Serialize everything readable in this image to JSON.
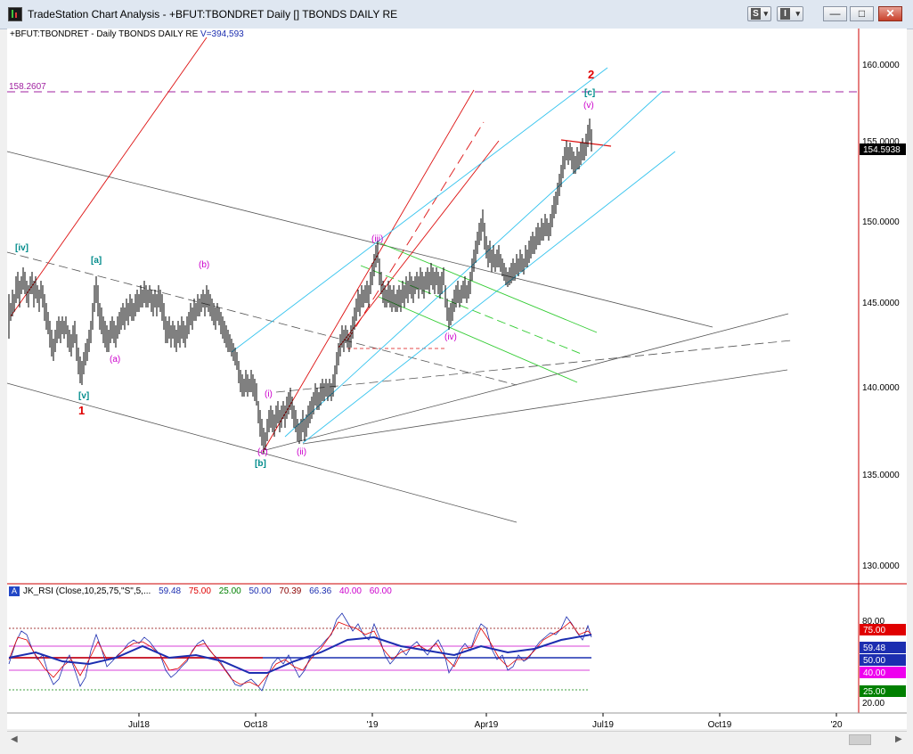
{
  "window": {
    "title": "TradeStation Chart Analysis - +BFUT:TBONDRET Daily [] TBONDS DAILY RE",
    "btn_s": "S",
    "btn_i": "I",
    "minimize": "—",
    "maximize": "□",
    "close": "✕"
  },
  "chart": {
    "symbol_label": "+BFUT:TBONDRET - Daily  TBONDS DAILY RE",
    "volume_label": "V=394,593",
    "ref_level_label": "158.2607",
    "last_price": "154.5938",
    "price_ticks": [
      "160.0000",
      "155.0000",
      "150.0000",
      "145.0000",
      "140.0000",
      "135.0000",
      "130.0000"
    ],
    "date_ticks": [
      "Jul18",
      "Oct18",
      "'19",
      "Apr19",
      "Jul19",
      "Oct19",
      "'20"
    ],
    "wave_labels": {
      "iv_bracket": "[iv]",
      "a_bracket": "[a]",
      "v_bracket": "[v]",
      "wave_1": "1",
      "b_paren_top": "(b)",
      "a_paren": "(a)",
      "c_paren": "(c)",
      "b_bracket": "[b]",
      "i_paren": "(i)",
      "ii_paren": "(ii)",
      "iii_paren": "(iii)",
      "iv_paren": "(iv)",
      "v_paren": "(v)",
      "c_bracket": "[c]",
      "wave_2": "2"
    },
    "colors": {
      "red": "#e00000",
      "cyan": "#33c3ee",
      "green": "#33cc33",
      "magenta": "#cc00cc",
      "teal": "#008b8b",
      "gray": "#555555"
    }
  },
  "indicator": {
    "badge": "A",
    "name": "JK_RSI (Close,10,25,75,\"S\",5,...",
    "values": [
      {
        "text": "59.48",
        "color": "#1c2eb0"
      },
      {
        "text": "75.00",
        "color": "#e00000"
      },
      {
        "text": "25.00",
        "color": "#008000"
      },
      {
        "text": "50.00",
        "color": "#1c2eb0"
      },
      {
        "text": "70.39",
        "color": "#8b0000"
      },
      {
        "text": "66.36",
        "color": "#1c2eb0"
      },
      {
        "text": "40.00",
        "color": "#cc00cc"
      },
      {
        "text": "60.00",
        "color": "#cc00cc"
      }
    ],
    "axis_labels": {
      "r80": "80.00",
      "r75": "75.00",
      "r5948": "59.48",
      "r50": "50.00",
      "r40": "40.00",
      "r25": "25.00",
      "r20": "20.00"
    }
  }
}
